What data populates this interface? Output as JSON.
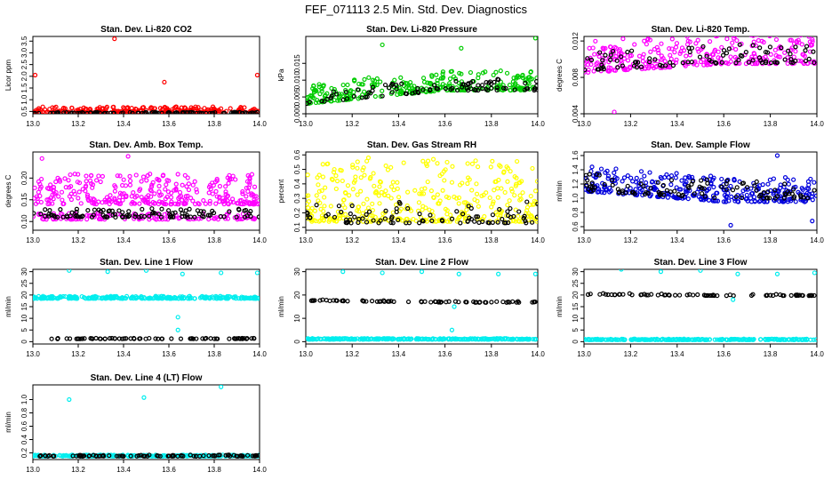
{
  "figure_title": "FEF_071113  2.5 Min. Std. Dev. Diagnostics",
  "colors": {
    "red": "#ff0000",
    "green": "#00cc00",
    "magenta": "#ff00ff",
    "yellow": "#ffff00",
    "blue": "#0000dd",
    "cyan": "#00eeee",
    "black": "#000000"
  },
  "chart_data": [
    {
      "type": "scatter",
      "title": "Stan. Dev. Li-820 CO2",
      "ylabel": "Licor ppm",
      "xlim": [
        13.0,
        14.0
      ],
      "ylim": [
        0.4,
        3.7
      ],
      "xticks": [
        "13.0",
        "13.2",
        "13.4",
        "13.6",
        "13.8",
        "14.0"
      ],
      "yticks": [
        "0.5",
        "1.0",
        "1.5",
        "2.0",
        "2.5",
        "3.0",
        "3.5"
      ],
      "series": [
        {
          "name": "primary",
          "color": "red",
          "gen": {
            "base": 0.45,
            "spread": 0.25,
            "slope": 0,
            "n": 260,
            "x0": 13.0,
            "x1": 14.0
          }
        },
        {
          "name": "reference",
          "color": "black",
          "gen": {
            "base": 0.42,
            "spread": 0.05,
            "slope": 0,
            "n": 110,
            "x0": 13.0,
            "x1": 14.0
          }
        }
      ],
      "outliers": [
        {
          "x": 13.36,
          "y": 3.6,
          "color": "red"
        },
        {
          "x": 13.01,
          "y": 2.05,
          "color": "red"
        },
        {
          "x": 13.99,
          "y": 2.05,
          "color": "red"
        },
        {
          "x": 13.58,
          "y": 1.75,
          "color": "red"
        }
      ]
    },
    {
      "type": "scatter",
      "title": "Stan. Dev. Li-820 Pressure",
      "ylabel": "kPa",
      "xlim": [
        13.0,
        14.0
      ],
      "ylim": [
        0.0,
        0.023
      ],
      "xticks": [
        "13.0",
        "13.2",
        "13.4",
        "13.6",
        "13.8",
        "14.0"
      ],
      "yticks": [
        "0.000",
        "0.005",
        "0.010",
        "0.015"
      ],
      "series": [
        {
          "name": "primary",
          "color": "green",
          "gen": {
            "base": 0.003,
            "spread": 0.006,
            "slope": 0.004,
            "n": 300,
            "x0": 13.0,
            "x1": 14.0
          }
        },
        {
          "name": "reference",
          "color": "black",
          "gen": {
            "base": 0.003,
            "spread": 0.004,
            "slope": 0.004,
            "n": 90,
            "x0": 13.0,
            "x1": 14.0
          }
        }
      ],
      "outliers": [
        {
          "x": 13.33,
          "y": 0.0205,
          "color": "green"
        },
        {
          "x": 13.67,
          "y": 0.0195,
          "color": "green"
        },
        {
          "x": 13.99,
          "y": 0.0225,
          "color": "green"
        }
      ]
    },
    {
      "type": "scatter",
      "title": "Stan. Dev. Li-820 Temp.",
      "ylabel": "degrees C",
      "xlim": [
        13.0,
        14.0
      ],
      "ylim": [
        0.004,
        0.0125
      ],
      "xticks": [
        "13.0",
        "13.2",
        "13.4",
        "13.6",
        "13.8",
        "14.0"
      ],
      "yticks": [
        "0.004",
        "0.008",
        "0.012"
      ],
      "series": [
        {
          "name": "primary",
          "color": "magenta",
          "gen": {
            "base": 0.0085,
            "spread": 0.0035,
            "slope": 0.001,
            "n": 300,
            "x0": 13.0,
            "x1": 14.0
          }
        },
        {
          "name": "reference",
          "color": "black",
          "gen": {
            "base": 0.0088,
            "spread": 0.002,
            "slope": 0.0008,
            "n": 90,
            "x0": 13.0,
            "x1": 14.0
          }
        }
      ],
      "outliers": [
        {
          "x": 13.13,
          "y": 0.0042,
          "color": "magenta"
        }
      ]
    },
    {
      "type": "scatter",
      "title": "Stan. Dev. Amb. Box Temp.",
      "ylabel": "degrees C",
      "xlim": [
        13.0,
        14.0
      ],
      "ylim": [
        0.08,
        0.26
      ],
      "xticks": [
        "13.0",
        "13.2",
        "13.4",
        "13.6",
        "13.8",
        "14.0"
      ],
      "yticks": [
        "0.10",
        "0.15",
        "0.20"
      ],
      "series": [
        {
          "name": "primary",
          "color": "magenta",
          "gen": {
            "base": 0.14,
            "spread": 0.07,
            "slope": 0,
            "n": 320,
            "x0": 13.0,
            "x1": 14.0
          }
        },
        {
          "name": "primary-low",
          "color": "magenta",
          "gen": {
            "base": 0.105,
            "spread": 0.015,
            "slope": 0,
            "n": 120,
            "x0": 13.0,
            "x1": 14.0
          }
        },
        {
          "name": "reference",
          "color": "black",
          "gen": {
            "base": 0.11,
            "spread": 0.02,
            "slope": 0,
            "n": 110,
            "x0": 13.0,
            "x1": 14.0
          }
        }
      ],
      "outliers": [
        {
          "x": 13.42,
          "y": 0.25,
          "color": "magenta"
        },
        {
          "x": 13.04,
          "y": 0.245,
          "color": "magenta"
        }
      ]
    },
    {
      "type": "scatter",
      "title": "Stan. Dev. Gas Stream RH",
      "ylabel": "percent",
      "xlim": [
        13.0,
        14.0
      ],
      "ylim": [
        0.08,
        0.62
      ],
      "xticks": [
        "13.0",
        "13.2",
        "13.4",
        "13.6",
        "13.8",
        "14.0"
      ],
      "yticks": [
        "0.1",
        "0.2",
        "0.3",
        "0.4",
        "0.5",
        "0.6"
      ],
      "series": [
        {
          "name": "primary",
          "color": "yellow",
          "gen": {
            "base": 0.14,
            "spread": 0.42,
            "slope": 0,
            "n": 380,
            "x0": 13.0,
            "x1": 14.0
          }
        },
        {
          "name": "reference",
          "color": "black",
          "gen": {
            "base": 0.13,
            "spread": 0.15,
            "slope": 0,
            "n": 90,
            "x0": 13.0,
            "x1": 14.0
          }
        }
      ],
      "outliers": [
        {
          "x": 13.27,
          "y": 0.58,
          "color": "yellow"
        },
        {
          "x": 13.55,
          "y": 0.57,
          "color": "yellow"
        }
      ]
    },
    {
      "type": "scatter",
      "title": "Stan. Dev. Sample Flow",
      "ylabel": "ml/min",
      "xlim": [
        13.0,
        14.0
      ],
      "ylim": [
        0.55,
        1.65
      ],
      "xticks": [
        "13.0",
        "13.2",
        "13.4",
        "13.6",
        "13.8",
        "14.0"
      ],
      "yticks": [
        "0.6",
        "0.8",
        "1.0",
        "1.2",
        "1.4",
        "1.6"
      ],
      "series": [
        {
          "name": "primary",
          "color": "blue",
          "gen": {
            "base": 1.1,
            "spread": 0.35,
            "slope": -0.15,
            "n": 330,
            "x0": 13.0,
            "x1": 14.0
          }
        },
        {
          "name": "reference",
          "color": "black",
          "gen": {
            "base": 1.1,
            "spread": 0.25,
            "slope": -0.1,
            "n": 100,
            "x0": 13.0,
            "x1": 14.0
          }
        }
      ],
      "outliers": [
        {
          "x": 13.83,
          "y": 1.6,
          "color": "blue"
        },
        {
          "x": 13.63,
          "y": 0.62,
          "color": "blue"
        },
        {
          "x": 13.98,
          "y": 0.68,
          "color": "blue"
        }
      ]
    },
    {
      "type": "scatter",
      "title": "Stan. Dev. Line 1 Flow",
      "ylabel": "ml/min",
      "xlim": [
        13.0,
        14.0
      ],
      "ylim": [
        -1,
        31
      ],
      "xticks": [
        "13.0",
        "13.2",
        "13.4",
        "13.6",
        "13.8",
        "14.0"
      ],
      "yticks": [
        "0",
        "5",
        "10",
        "15",
        "20",
        "25",
        "30"
      ],
      "series": [
        {
          "name": "primary",
          "color": "cyan",
          "gen": {
            "base": 18.5,
            "spread": 1.0,
            "slope": 0,
            "n": 260,
            "x0": 13.0,
            "x1": 14.0
          }
        },
        {
          "name": "reference",
          "color": "black",
          "gen": {
            "base": 1.2,
            "spread": 0.3,
            "slope": 0,
            "n": 70,
            "x0": 13.0,
            "x1": 14.0
          }
        }
      ],
      "outliers": [
        {
          "x": 13.16,
          "y": 30.5,
          "color": "cyan"
        },
        {
          "x": 13.33,
          "y": 30,
          "color": "cyan"
        },
        {
          "x": 13.5,
          "y": 30.5,
          "color": "cyan"
        },
        {
          "x": 13.66,
          "y": 29,
          "color": "cyan"
        },
        {
          "x": 13.83,
          "y": 29.5,
          "color": "cyan"
        },
        {
          "x": 13.99,
          "y": 29.5,
          "color": "cyan"
        },
        {
          "x": 13.64,
          "y": 10.5,
          "color": "cyan"
        },
        {
          "x": 13.64,
          "y": 5,
          "color": "cyan"
        }
      ]
    },
    {
      "type": "scatter",
      "title": "Stan. Dev. Line 2 Flow",
      "ylabel": "ml/min",
      "xlim": [
        13.0,
        14.0
      ],
      "ylim": [
        -1,
        31
      ],
      "xticks": [
        "13.0",
        "13.2",
        "13.4",
        "13.6",
        "13.8",
        "14.0"
      ],
      "yticks": [
        "0",
        "10",
        "20",
        "30"
      ],
      "series": [
        {
          "name": "primary",
          "color": "cyan",
          "gen": {
            "base": 1.0,
            "spread": 0.4,
            "slope": 0,
            "n": 260,
            "x0": 13.0,
            "x1": 14.0
          }
        },
        {
          "name": "reference",
          "color": "black",
          "gen": {
            "base": 17.6,
            "spread": 0.5,
            "slope": -0.8,
            "n": 70,
            "x0": 13.0,
            "x1": 14.0
          }
        }
      ],
      "outliers": [
        {
          "x": 13.16,
          "y": 30,
          "color": "cyan"
        },
        {
          "x": 13.33,
          "y": 29.5,
          "color": "cyan"
        },
        {
          "x": 13.5,
          "y": 30,
          "color": "cyan"
        },
        {
          "x": 13.66,
          "y": 29,
          "color": "cyan"
        },
        {
          "x": 13.83,
          "y": 29,
          "color": "cyan"
        },
        {
          "x": 13.99,
          "y": 29,
          "color": "cyan"
        },
        {
          "x": 13.64,
          "y": 15,
          "color": "cyan"
        },
        {
          "x": 13.63,
          "y": 5,
          "color": "cyan"
        }
      ]
    },
    {
      "type": "scatter",
      "title": "Stan. Dev. Line 3 Flow",
      "ylabel": "ml/min",
      "xlim": [
        13.0,
        14.0
      ],
      "ylim": [
        -1,
        31
      ],
      "xticks": [
        "13.0",
        "13.2",
        "13.4",
        "13.6",
        "13.8",
        "14.0"
      ],
      "yticks": [
        "0",
        "5",
        "10",
        "15",
        "20",
        "25",
        "30"
      ],
      "series": [
        {
          "name": "primary",
          "color": "cyan",
          "gen": {
            "base": 0.8,
            "spread": 0.4,
            "slope": 0,
            "n": 260,
            "x0": 13.0,
            "x1": 14.0
          }
        },
        {
          "name": "reference",
          "color": "black",
          "gen": {
            "base": 20.2,
            "spread": 0.6,
            "slope": -0.5,
            "n": 70,
            "x0": 13.0,
            "x1": 14.0
          }
        }
      ],
      "outliers": [
        {
          "x": 13.16,
          "y": 31,
          "color": "cyan"
        },
        {
          "x": 13.33,
          "y": 30,
          "color": "cyan"
        },
        {
          "x": 13.5,
          "y": 30.5,
          "color": "cyan"
        },
        {
          "x": 13.66,
          "y": 29,
          "color": "cyan"
        },
        {
          "x": 13.83,
          "y": 29,
          "color": "cyan"
        },
        {
          "x": 13.99,
          "y": 29.5,
          "color": "cyan"
        },
        {
          "x": 13.64,
          "y": 18,
          "color": "cyan"
        }
      ]
    },
    {
      "type": "scatter",
      "title": "Stan. Dev. Line 4 (LT) Flow",
      "ylabel": "ml/min",
      "xlim": [
        13.0,
        14.0
      ],
      "ylim": [
        0.1,
        1.22
      ],
      "xticks": [
        "13.0",
        "13.2",
        "13.4",
        "13.6",
        "13.8",
        "14.0"
      ],
      "yticks": [
        "0.2",
        "0.4",
        "0.6",
        "0.8",
        "1.0"
      ],
      "series": [
        {
          "name": "primary",
          "color": "cyan",
          "gen": {
            "base": 0.15,
            "spread": 0.02,
            "slope": 0,
            "n": 240,
            "x0": 13.0,
            "x1": 14.0
          }
        },
        {
          "name": "reference",
          "color": "black",
          "gen": {
            "base": 0.15,
            "spread": 0.02,
            "slope": 0,
            "n": 90,
            "x0": 13.0,
            "x1": 14.0
          }
        }
      ],
      "outliers": [
        {
          "x": 13.16,
          "y": 1.0,
          "color": "cyan"
        },
        {
          "x": 13.49,
          "y": 1.03,
          "color": "cyan"
        },
        {
          "x": 13.83,
          "y": 1.19,
          "color": "cyan"
        }
      ]
    }
  ]
}
